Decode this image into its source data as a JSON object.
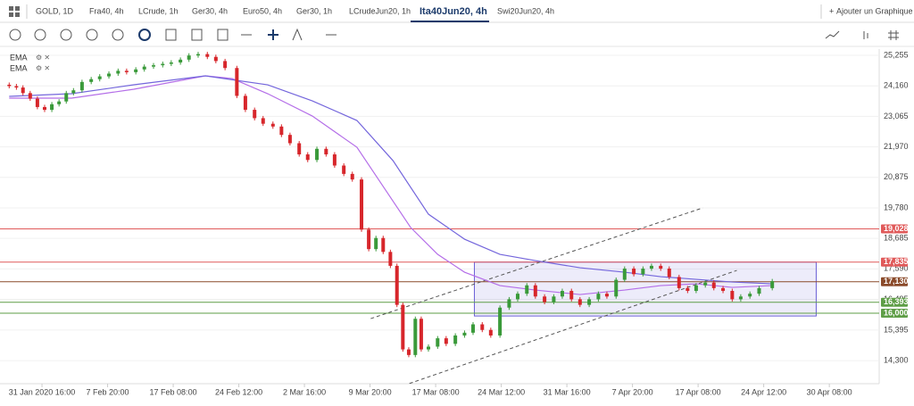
{
  "tabs": [
    "GOLD, 1D",
    "Fra40, 4h",
    "LCrude, 1h",
    "Ger30, 4h",
    "Euro50, 4h",
    "Ger30, 1h",
    "LCrudeJun20, 1h",
    "Ita40Jun20, 4h",
    "Swi20Jun20, 4h"
  ],
  "active_tab": 7,
  "add_chart": "Ajouter un Graphique",
  "chart_data": {
    "type": "candlestick",
    "up_color": "#3a9a3a",
    "down_color": "#d7262b",
    "candles": {
      "x": [
        -0.5,
        -0.39,
        -0.29,
        -0.18,
        -0.07,
        0.04,
        0.15,
        0.26,
        0.37,
        0.48,
        0.61,
        0.75,
        0.88,
        1.02,
        1.16,
        1.29,
        1.43,
        1.56,
        1.7,
        1.84,
        1.97,
        2.11,
        2.24,
        2.38,
        2.52,
        2.65,
        2.79,
        2.97,
        3.1,
        3.24,
        3.37,
        3.52,
        3.65,
        3.78,
        3.92,
        4.05,
        4.19,
        4.33,
        4.46,
        4.6,
        4.73,
        4.87,
        4.98,
        5.09,
        5.2,
        5.31,
        5.41,
        5.5,
        5.59,
        5.69,
        5.78,
        5.89,
        6.03,
        6.16,
        6.3,
        6.44,
        6.57,
        6.71,
        6.84,
        6.98,
        7.12,
        7.25,
        7.39,
        7.52,
        7.66,
        7.8,
        7.93,
        8.07,
        8.2,
        8.34,
        8.48,
        8.61,
        8.75,
        8.88,
        9.02,
        9.16,
        9.29,
        9.43,
        9.56,
        9.71,
        9.84,
        9.97,
        10.11,
        10.24,
        10.38,
        10.52,
        10.65,
        10.79,
        10.93,
        11.13
      ],
      "open": [
        24200,
        24150,
        24100,
        23900,
        23700,
        23400,
        23300,
        23500,
        23600,
        23900,
        24000,
        24300,
        24400,
        24500,
        24600,
        24700,
        24650,
        24750,
        24850,
        24900,
        24950,
        25000,
        25100,
        25250,
        25300,
        25200,
        25050,
        24800,
        23800,
        23300,
        23000,
        22800,
        22700,
        22400,
        22100,
        21700,
        21500,
        21900,
        21700,
        21300,
        21000,
        20800,
        19000,
        18300,
        18700,
        18200,
        17700,
        16300,
        14700,
        14500,
        15800,
        14700,
        14800,
        15100,
        14900,
        15200,
        15300,
        15600,
        15400,
        15200,
        16200,
        16500,
        16700,
        17000,
        16600,
        16400,
        16600,
        16800,
        16500,
        16300,
        16500,
        16700,
        16600,
        17200,
        17600,
        17400,
        17600,
        17700,
        17600,
        17300,
        16900,
        16800,
        17000,
        17100,
        16900,
        16800,
        16500,
        16600,
        16700,
        16900
      ],
      "high": [
        24280,
        24230,
        24180,
        23980,
        23780,
        23480,
        23580,
        23680,
        23980,
        24080,
        24380,
        24480,
        24580,
        24680,
        24780,
        24780,
        24830,
        24930,
        24980,
        25030,
        25080,
        25180,
        25330,
        25380,
        25380,
        25280,
        25130,
        24880,
        23880,
        23380,
        23080,
        22880,
        22780,
        22480,
        22180,
        21780,
        21980,
        21980,
        21780,
        21380,
        21080,
        20880,
        19080,
        18780,
        18780,
        18280,
        17780,
        16380,
        14780,
        15880,
        15880,
        14880,
        15180,
        15180,
        15280,
        15380,
        15680,
        15680,
        15480,
        16280,
        16580,
        16780,
        17080,
        17080,
        16680,
        16680,
        16880,
        16880,
        16580,
        16580,
        16780,
        16780,
        17280,
        17680,
        17680,
        17680,
        17780,
        17780,
        17680,
        17380,
        16980,
        17080,
        17180,
        17180,
        16980,
        16880,
        16680,
        16780,
        16980,
        17230
      ],
      "low": [
        24070,
        24020,
        23820,
        23620,
        23320,
        23220,
        23220,
        23420,
        23520,
        23820,
        23920,
        24220,
        24320,
        24420,
        24520,
        24570,
        24570,
        24670,
        24770,
        24820,
        24870,
        24920,
        25020,
        25170,
        25120,
        24970,
        24720,
        23720,
        23220,
        22920,
        22720,
        22620,
        22320,
        22020,
        21620,
        21420,
        21420,
        21620,
        21220,
        20920,
        20720,
        18920,
        18220,
        18220,
        18120,
        17620,
        16220,
        14620,
        14420,
        14420,
        14620,
        14620,
        14720,
        14820,
        14820,
        15120,
        15220,
        15320,
        15120,
        15120,
        16120,
        16420,
        16620,
        16520,
        16320,
        16320,
        16520,
        16420,
        16220,
        16220,
        16420,
        16520,
        16520,
        17120,
        17320,
        17320,
        17520,
        17520,
        17220,
        16820,
        16720,
        16720,
        16920,
        16820,
        16720,
        16420,
        16420,
        16520,
        16620,
        16820
      ],
      "close": [
        24150,
        24100,
        23900,
        23700,
        23400,
        23300,
        23500,
        23600,
        23900,
        24000,
        24300,
        24400,
        24500,
        24600,
        24700,
        24650,
        24750,
        24850,
        24900,
        24950,
        25000,
        25100,
        25250,
        25300,
        25200,
        25050,
        24800,
        23800,
        23300,
        23000,
        22800,
        22700,
        22400,
        22100,
        21700,
        21500,
        21900,
        21700,
        21300,
        21000,
        20800,
        19000,
        18300,
        18700,
        18200,
        17700,
        16300,
        14700,
        14500,
        15800,
        14700,
        14800,
        15100,
        14900,
        15200,
        15300,
        15600,
        15400,
        15200,
        16200,
        16500,
        16700,
        17000,
        16600,
        16400,
        16600,
        16800,
        16500,
        16300,
        16500,
        16700,
        16600,
        17200,
        17600,
        17400,
        17600,
        17700,
        17600,
        17300,
        16900,
        16800,
        17000,
        17100,
        16900,
        16800,
        16500,
        16600,
        16700,
        16900,
        17150
      ]
    },
    "series": [
      {
        "name": "EMA",
        "color": "#b46ee8",
        "x": [
          -0.5,
          0.45,
          1.4,
          2.49,
          2.9,
          3.44,
          4.12,
          4.8,
          5.21,
          5.62,
          6.03,
          6.44,
          6.98,
          7.52,
          8.2,
          8.88,
          9.43,
          9.97,
          10.52,
          11.13
        ],
        "values": [
          23718,
          23718,
          24038,
          24518,
          24422,
          23878,
          23077,
          21956,
          20515,
          19073,
          18112,
          17472,
          16991,
          16831,
          16671,
          16831,
          16991,
          17055,
          16927,
          16991
        ]
      },
      {
        "name": "EMA",
        "color": "#7466dc",
        "x": [
          -0.5,
          0.45,
          1.4,
          2.49,
          3.44,
          4.12,
          4.8,
          5.35,
          5.89,
          6.44,
          6.98,
          7.52,
          8.2,
          8.88,
          9.43,
          9.97,
          10.52,
          11.13
        ],
        "values": [
          23782,
          23878,
          24198,
          24518,
          24198,
          23622,
          22917,
          21475,
          19554,
          18657,
          18112,
          17888,
          17632,
          17472,
          17312,
          17215,
          17119,
          17055
        ]
      }
    ],
    "levels": [
      {
        "value": 19028,
        "label": "19,028",
        "color": "#e05a5a"
      },
      {
        "value": 17835,
        "label": "17,835",
        "color": "#e05a5a"
      },
      {
        "value": 17130,
        "label": "17,130",
        "color": "#8a4a2a"
      },
      {
        "value": 16393,
        "label": "16,393",
        "color": "#5e9e46"
      },
      {
        "value": 16000,
        "label": "16,000",
        "color": "#5e9e46"
      }
    ],
    "box": {
      "x": [
        6.59,
        11.8
      ],
      "y": [
        15900,
        17835
      ],
      "color": "#6a5fd6"
    },
    "channels": [
      {
        "x": [
          5.51,
          10.59
        ],
        "y": [
          13404,
          17536
        ]
      },
      {
        "x": [
          5.01,
          10.07
        ],
        "y": [
          15806,
          19778
        ]
      }
    ],
    "xlim": [
      -0.64,
      12.76
    ],
    "ylim": [
      13470,
      25480
    ],
    "yticks": [
      {
        "value": 25255,
        "label": "25,255"
      },
      {
        "value": 24160,
        "label": "24,160"
      },
      {
        "value": 23065,
        "label": "23,065"
      },
      {
        "value": 21970,
        "label": "21,970"
      },
      {
        "value": 20875,
        "label": "20,875"
      },
      {
        "value": 19780,
        "label": "19,780"
      },
      {
        "value": 18685,
        "label": "18,685"
      },
      {
        "value": 17590,
        "label": "17,590"
      },
      {
        "value": 16495,
        "label": "16,495"
      },
      {
        "value": 15395,
        "label": "15,395"
      },
      {
        "value": 14300,
        "label": "14,300"
      }
    ],
    "xticks": [
      {
        "value": 0,
        "label": "31 Jan 2020 16:00"
      },
      {
        "value": 1,
        "label": "7 Feb 20:00"
      },
      {
        "value": 2,
        "label": "17 Feb 08:00"
      },
      {
        "value": 3,
        "label": "24 Feb 12:00"
      },
      {
        "value": 4,
        "label": "2 Mar 16:00"
      },
      {
        "value": 5,
        "label": "9 Mar 20:00"
      },
      {
        "value": 6,
        "label": "17 Mar 08:00"
      },
      {
        "value": 7,
        "label": "24 Mar 12:00"
      },
      {
        "value": 8,
        "label": "31 Mar 16:00"
      },
      {
        "value": 9,
        "label": "7 Apr 20:00"
      },
      {
        "value": 10,
        "label": "17 Apr 08:00"
      },
      {
        "value": 11,
        "label": "24 Apr 12:00"
      },
      {
        "value": 12,
        "label": "30 Apr 08:00"
      }
    ]
  }
}
